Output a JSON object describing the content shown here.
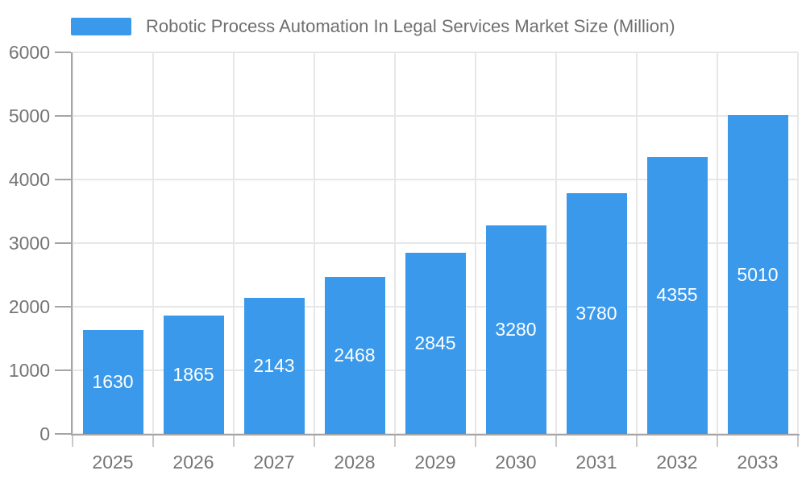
{
  "chart_data": {
    "type": "bar",
    "legend": "Robotic Process Automation In Legal Services Market Size (Million)",
    "categories": [
      "2025",
      "2026",
      "2027",
      "2028",
      "2029",
      "2030",
      "2031",
      "2032",
      "2033"
    ],
    "values": [
      1630,
      1865,
      2143,
      2468,
      2845,
      3280,
      3780,
      4355,
      5010
    ],
    "yticks": [
      "0",
      "1000",
      "2000",
      "3000",
      "4000",
      "5000",
      "6000"
    ],
    "ylim": [
      0,
      6000
    ],
    "grid": "both",
    "legend_position": "top-left",
    "bar_value_labels_inside": true,
    "colors": {
      "bar": "#3a99eb",
      "bar_label_text": "#ffffff",
      "axis_text": "#757575",
      "legend_text": "#6f6f6f",
      "grid_line": "#e7e7e7",
      "axis_line": "#a5a5a5",
      "x_tick": "#c9c9c9",
      "background": "#ffffff"
    }
  }
}
